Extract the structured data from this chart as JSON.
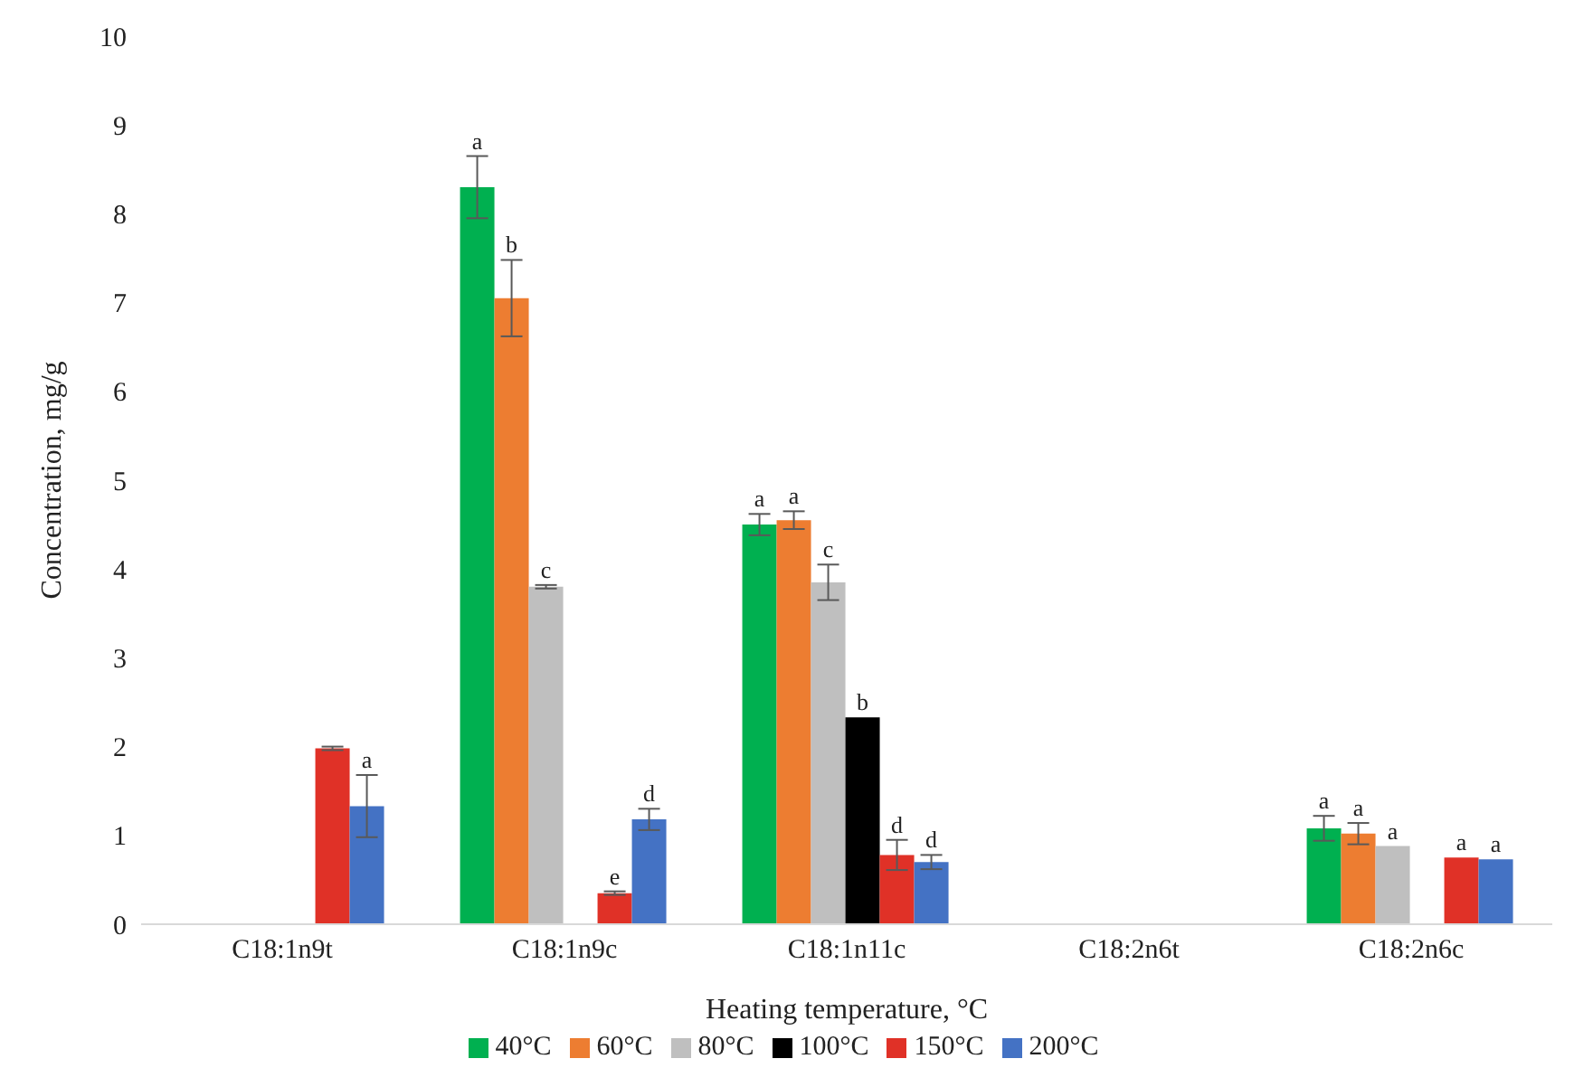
{
  "chart_data": {
    "type": "bar",
    "xlabel": "Heating temperature, °C",
    "ylabel": "Concentration, mg/g",
    "categories": [
      "C18:1n9t",
      "C18:1n9c",
      "C18:1n11c",
      "C18:2n6t",
      "C18:2n6c"
    ],
    "ylim": [
      0,
      10
    ],
    "yticks": [
      0,
      1,
      2,
      3,
      4,
      5,
      6,
      7,
      8,
      9,
      10
    ],
    "grid": false,
    "legend": "bottom",
    "series": [
      {
        "name": "40°C",
        "color": "#00b050",
        "values": [
          null,
          8.3,
          4.5,
          null,
          1.08
        ],
        "errors": [
          null,
          0.35,
          0.12,
          null,
          0.14
        ],
        "value_labels": [
          null,
          "a",
          "a",
          null,
          "a"
        ]
      },
      {
        "name": "60°C",
        "color": "#ed7d31",
        "values": [
          null,
          7.05,
          4.55,
          null,
          1.02
        ],
        "errors": [
          null,
          0.43,
          0.1,
          null,
          0.12
        ],
        "value_labels": [
          null,
          "b",
          "a",
          null,
          "a"
        ]
      },
      {
        "name": "80°C",
        "color": "#bfbfbf",
        "values": [
          null,
          3.8,
          3.85,
          null,
          0.88
        ],
        "errors": [
          null,
          0.02,
          0.2,
          null,
          null
        ],
        "value_labels": [
          null,
          "c",
          "c",
          null,
          "a"
        ]
      },
      {
        "name": "100°C",
        "color": "#000000",
        "values": [
          null,
          null,
          2.33,
          null,
          null
        ],
        "errors": [
          null,
          null,
          null,
          null,
          null
        ],
        "value_labels": [
          null,
          null,
          "b",
          null,
          null
        ]
      },
      {
        "name": "150°C",
        "color": "#e03127",
        "values": [
          1.98,
          0.35,
          0.78,
          null,
          0.75
        ],
        "errors": [
          0.02,
          0.02,
          0.17,
          null,
          null
        ],
        "value_labels": [
          null,
          "e",
          "d",
          null,
          "a"
        ]
      },
      {
        "name": "200°C",
        "color": "#4472c4",
        "values": [
          1.33,
          1.18,
          0.7,
          null,
          0.73
        ],
        "errors": [
          0.35,
          0.12,
          0.08,
          null,
          null
        ],
        "value_labels": [
          "a",
          "d",
          "d",
          null,
          "a"
        ]
      }
    ]
  }
}
